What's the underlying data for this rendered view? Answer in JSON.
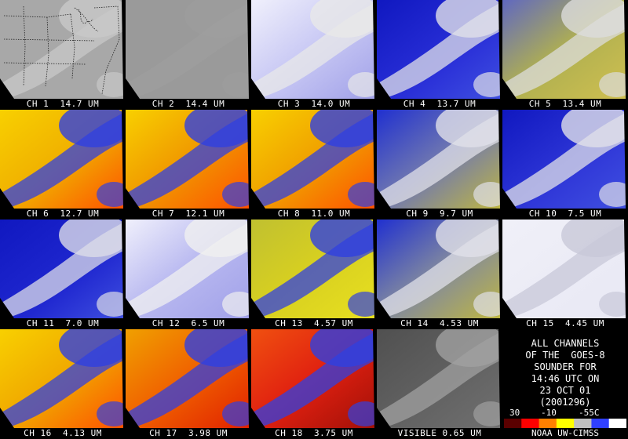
{
  "panels": [
    {
      "label": "CH 1  14.7 UM",
      "style": "gray_map",
      "colors": {
        "base": "#a8a8a8",
        "cloud": "#c8c8c8"
      }
    },
    {
      "label": "CH 2  14.4 UM",
      "style": "gray_flat",
      "colors": {
        "base": "#9a9a9a",
        "cloud": "#a6a6a6"
      }
    },
    {
      "label": "CH 3  14.0 UM",
      "style": "lavender",
      "colors": {
        "base": "#c8c8f4",
        "cloud": "#e8e8e8"
      }
    },
    {
      "label": "CH 4  13.7 UM",
      "style": "blue",
      "colors": {
        "base": "#2a30d8",
        "cloud": "#e0e0e8"
      }
    },
    {
      "label": "CH 5  13.4 UM",
      "style": "olive",
      "colors": {
        "base": "#b0b050",
        "cloud": "#dcdcdc"
      }
    },
    {
      "label": "CH 6  12.7 UM",
      "style": "hot",
      "colors": {
        "base": "#f0b000",
        "cloud": "#3040e0"
      }
    },
    {
      "label": "CH 7  12.1 UM",
      "style": "hot",
      "colors": {
        "base": "#f09800",
        "cloud": "#3040e0"
      }
    },
    {
      "label": "CH 8  11.0 UM",
      "style": "hot",
      "colors": {
        "base": "#f0a000",
        "cloud": "#3040e0"
      }
    },
    {
      "label": "CH 9  9.7 UM",
      "style": "bluegold",
      "colors": {
        "base": "#7078b0",
        "cloud": "#e0e0e8"
      }
    },
    {
      "label": "CH 10  7.5 UM",
      "style": "blue",
      "colors": {
        "base": "#3038d8",
        "cloud": "#e0e0e8"
      }
    },
    {
      "label": "CH 11  7.0 UM",
      "style": "blue",
      "colors": {
        "base": "#2028d0",
        "cloud": "#dcdce8"
      }
    },
    {
      "label": "CH 12  6.5 UM",
      "style": "lavender",
      "colors": {
        "base": "#b8b8f0",
        "cloud": "#f0f0f0"
      }
    },
    {
      "label": "CH 13  4.57 UM",
      "style": "yellow",
      "colors": {
        "base": "#d8d020",
        "cloud": "#3040e0"
      }
    },
    {
      "label": "CH 14  4.53 UM",
      "style": "bluegold",
      "colors": {
        "base": "#8088a0",
        "cloud": "#e0e0e8"
      }
    },
    {
      "label": "CH 15  4.45 UM",
      "style": "pale",
      "colors": {
        "base": "#e8e8f4",
        "cloud": "#c8c8d8"
      }
    },
    {
      "label": "CH 16  4.13 UM",
      "style": "hot",
      "colors": {
        "base": "#f0a800",
        "cloud": "#3040e0"
      }
    },
    {
      "label": "CH 17  3.98 UM",
      "style": "red",
      "colors": {
        "base": "#f06000",
        "cloud": "#3040e0"
      }
    },
    {
      "label": "CH 18  3.75 UM",
      "style": "deepred",
      "colors": {
        "base": "#e02010",
        "cloud": "#3040e0"
      }
    },
    {
      "label": "VISIBLE 0.65 UM",
      "style": "visible",
      "colors": {
        "base": "#606060",
        "cloud": "#a0a0a0"
      }
    }
  ],
  "info": {
    "lines": [
      "ALL CHANNELS",
      "OF THE  GOES-8",
      "SOUNDER FOR",
      "14:46 UTC ON",
      "23 OCT 01",
      "(2001296)"
    ],
    "colorbar_labels": [
      "30",
      "-10",
      "-55C"
    ],
    "credit": "NOAA UW-CIMSS"
  },
  "colorbar_colors": [
    "#5a0000",
    "#ff0000",
    "#ff8000",
    "#ffff00",
    "#c0c0c0",
    "#3040ff",
    "#ffffff"
  ]
}
